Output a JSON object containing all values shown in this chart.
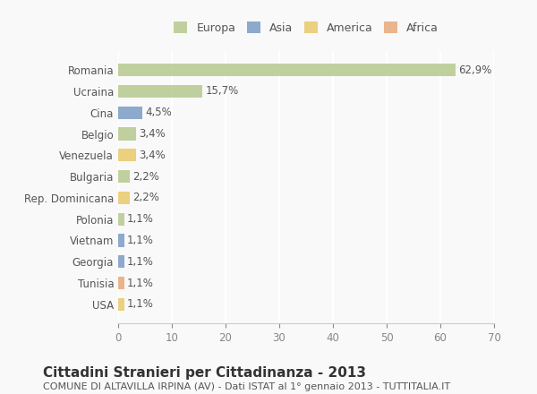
{
  "categories": [
    "Romania",
    "Ucraina",
    "Cina",
    "Belgio",
    "Venezuela",
    "Bulgaria",
    "Rep. Dominicana",
    "Polonia",
    "Vietnam",
    "Georgia",
    "Tunisia",
    "USA"
  ],
  "values": [
    62.9,
    15.7,
    4.5,
    3.4,
    3.4,
    2.2,
    2.2,
    1.1,
    1.1,
    1.1,
    1.1,
    1.1
  ],
  "labels": [
    "62,9%",
    "15,7%",
    "4,5%",
    "3,4%",
    "3,4%",
    "2,2%",
    "2,2%",
    "1,1%",
    "1,1%",
    "1,1%",
    "1,1%",
    "1,1%"
  ],
  "continents": [
    "Europa",
    "Europa",
    "Asia",
    "Europa",
    "America",
    "Europa",
    "America",
    "Europa",
    "Asia",
    "Asia",
    "Africa",
    "America"
  ],
  "colors": {
    "Europa": "#b5c98e",
    "Asia": "#7a9bc4",
    "America": "#e8c96a",
    "Africa": "#e8a87a"
  },
  "legend_colors": {
    "Europa": "#b5c98e",
    "Asia": "#7a9bc4",
    "America": "#e8c96a",
    "Africa": "#e8a87a"
  },
  "xlim": [
    0,
    70
  ],
  "xticks": [
    0,
    10,
    20,
    30,
    40,
    50,
    60,
    70
  ],
  "title": "Cittadini Stranieri per Cittadinanza - 2013",
  "subtitle": "COMUNE DI ALTAVILLA IRPINA (AV) - Dati ISTAT al 1° gennaio 2013 - TUTTITALIA.IT",
  "background_color": "#f9f9f9",
  "grid_color": "#ffffff",
  "bar_height": 0.6,
  "title_fontsize": 11,
  "subtitle_fontsize": 8,
  "label_fontsize": 8.5,
  "tick_fontsize": 8.5
}
